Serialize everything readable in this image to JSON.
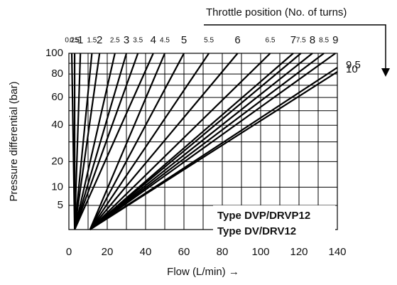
{
  "chart_data": {
    "type": "line",
    "title": "Throttle position (No. of turns)",
    "xlabel": "Flow (L/min) →",
    "ylabel": "Pressure differential (bar)",
    "annotations": [
      "Type DVP/DRVP12",
      "Type DV/DRV12"
    ],
    "color": "#000000",
    "yscale": "sqrt",
    "xlim": [
      0,
      140
    ],
    "ylim": [
      1,
      100
    ],
    "xticks": [
      0,
      20,
      40,
      60,
      80,
      100,
      120,
      140
    ],
    "yticks": [
      5,
      10,
      20,
      40,
      60,
      80,
      100
    ],
    "xgrid": [
      0,
      10,
      20,
      30,
      40,
      50,
      60,
      70,
      80,
      90,
      100,
      110,
      120,
      130,
      140
    ],
    "ygrid": [
      5,
      10,
      20,
      30,
      40,
      50,
      60,
      70,
      80,
      90,
      100
    ],
    "series": [
      {
        "name": "0.25",
        "x": [
          3,
          1.5
        ],
        "values": [
          1,
          100
        ]
      },
      {
        "name": "0.5",
        "x": [
          3,
          3
        ],
        "values": [
          1,
          100
        ]
      },
      {
        "name": "1",
        "x": [
          3,
          6
        ],
        "values": [
          1,
          100
        ]
      },
      {
        "name": "1.5",
        "x": [
          3,
          12
        ],
        "values": [
          1,
          100
        ]
      },
      {
        "name": "2",
        "x": [
          3,
          16
        ],
        "values": [
          1,
          100
        ]
      },
      {
        "name": "2.5",
        "x": [
          3,
          24
        ],
        "values": [
          1,
          100
        ]
      },
      {
        "name": "3",
        "x": [
          3,
          30
        ],
        "values": [
          1,
          100
        ]
      },
      {
        "name": "3.5",
        "x": [
          3,
          36
        ],
        "values": [
          1,
          100
        ]
      },
      {
        "name": "4",
        "x": [
          3,
          44
        ],
        "values": [
          1,
          100
        ]
      },
      {
        "name": "4.5",
        "x": [
          11,
          50
        ],
        "values": [
          1,
          100
        ]
      },
      {
        "name": "5",
        "x": [
          11,
          60
        ],
        "values": [
          1,
          100
        ]
      },
      {
        "name": "5.5",
        "x": [
          11,
          73
        ],
        "values": [
          1,
          100
        ]
      },
      {
        "name": "6",
        "x": [
          11,
          88
        ],
        "values": [
          1,
          100
        ]
      },
      {
        "name": "6.5",
        "x": [
          11,
          105
        ],
        "values": [
          1,
          100
        ]
      },
      {
        "name": "7",
        "x": [
          11,
          117
        ],
        "values": [
          1,
          100
        ]
      },
      {
        "name": "7.5",
        "x": [
          11,
          121
        ],
        "values": [
          1,
          100
        ]
      },
      {
        "name": "8",
        "x": [
          11,
          127
        ],
        "values": [
          1,
          100
        ]
      },
      {
        "name": "8.5",
        "x": [
          11,
          133
        ],
        "values": [
          1,
          100
        ]
      },
      {
        "name": "9",
        "x": [
          11,
          139
        ],
        "values": [
          1,
          100
        ]
      },
      {
        "name": "9.5",
        "x": [
          11,
          140
        ],
        "values": [
          1,
          86
        ]
      },
      {
        "name": "10",
        "x": [
          11,
          140
        ],
        "values": [
          1,
          82
        ]
      }
    ]
  }
}
